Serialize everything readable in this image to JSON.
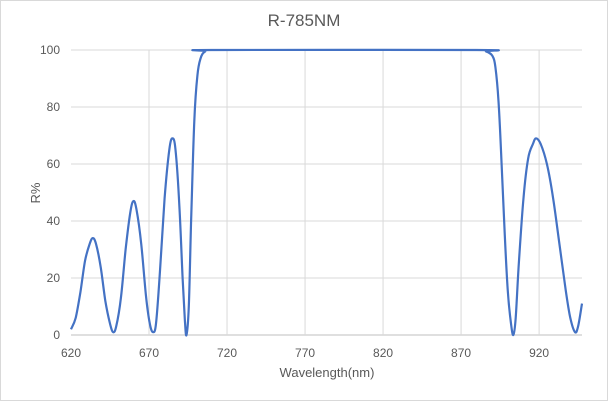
{
  "chart_data": {
    "type": "line",
    "title": "R-785NM",
    "xlabel": "Wavelength(nm)",
    "ylabel": "R%",
    "xlim": [
      620,
      947.5
    ],
    "ylim": [
      0,
      100
    ],
    "x_ticks": [
      "620",
      "670",
      "720",
      "770",
      "820",
      "870",
      "920"
    ],
    "y_ticks": [
      "0",
      "20",
      "40",
      "60",
      "80",
      "100"
    ],
    "grid": true,
    "legend": "none",
    "series": [
      {
        "name": "R%",
        "color": "#4472c4",
        "points": [
          [
            620,
            2
          ],
          [
            623,
            6
          ],
          [
            626,
            15
          ],
          [
            629,
            26
          ],
          [
            632,
            32
          ],
          [
            634,
            34
          ],
          [
            636,
            32
          ],
          [
            639,
            24
          ],
          [
            642,
            12
          ],
          [
            645,
            4
          ],
          [
            647,
            1
          ],
          [
            649,
            3
          ],
          [
            652,
            13
          ],
          [
            655,
            30
          ],
          [
            658,
            43
          ],
          [
            660,
            47
          ],
          [
            662,
            44
          ],
          [
            665,
            32
          ],
          [
            668,
            14
          ],
          [
            670.5,
            4
          ],
          [
            672.5,
            1
          ],
          [
            674.5,
            4
          ],
          [
            677,
            22
          ],
          [
            680,
            48
          ],
          [
            683,
            65
          ],
          [
            685,
            69
          ],
          [
            687,
            65
          ],
          [
            689.5,
            45
          ],
          [
            691.5,
            20
          ],
          [
            693,
            5
          ],
          [
            694,
            0
          ],
          [
            695.5,
            10
          ],
          [
            697,
            40
          ],
          [
            699,
            75
          ],
          [
            701,
            91
          ],
          [
            703,
            97
          ],
          [
            706,
            99.5
          ],
          [
            712,
            100
          ],
          [
            880,
            100
          ],
          [
            886,
            99.5
          ],
          [
            890,
            98
          ],
          [
            892,
            94
          ],
          [
            894,
            82
          ],
          [
            896,
            60
          ],
          [
            898,
            35
          ],
          [
            900,
            15
          ],
          [
            902,
            4
          ],
          [
            903.5,
            0
          ],
          [
            905,
            6
          ],
          [
            907,
            25
          ],
          [
            910,
            48
          ],
          [
            913,
            62
          ],
          [
            916,
            67
          ],
          [
            918,
            69
          ],
          [
            921,
            67
          ],
          [
            925,
            60
          ],
          [
            929,
            48
          ],
          [
            933,
            32
          ],
          [
            937,
            16
          ],
          [
            940,
            6
          ],
          [
            943,
            1
          ],
          [
            945,
            3
          ],
          [
            947.5,
            11
          ]
        ]
      }
    ]
  }
}
